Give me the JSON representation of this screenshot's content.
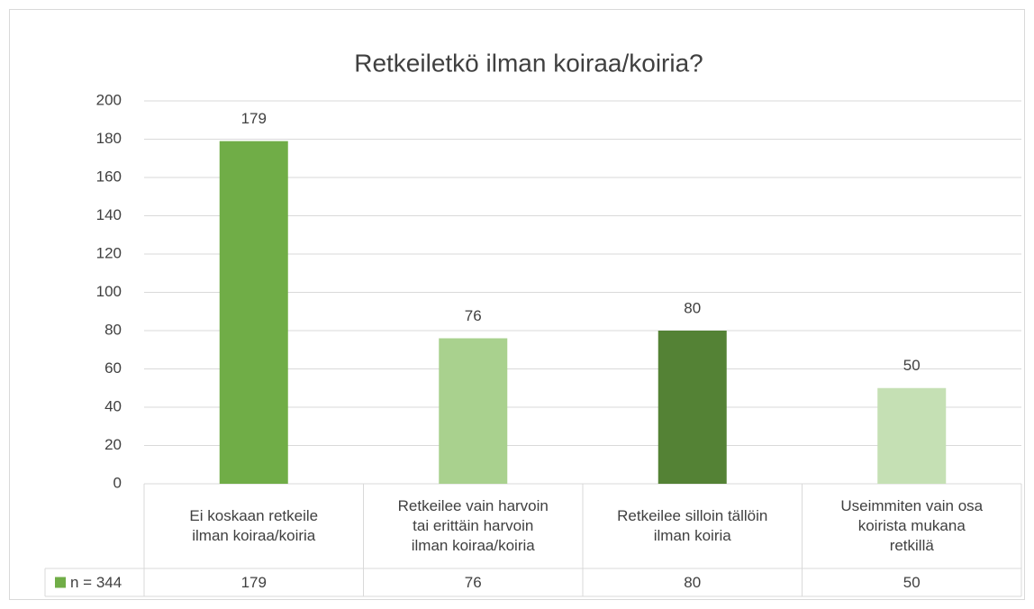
{
  "chart_data": {
    "type": "bar",
    "title": "Retkeiletkö ilman koiraa/koiria?",
    "categories": [
      "Ei koskaan retkeile\nilman koiraa/koiria",
      "Retkeilee vain harvoin\ntai erittäin harvoin\nilman koiraa/koiria",
      "Retkeilee silloin tällöin\nilman koiria",
      "Useimmiten vain osa\nkoirista mukana\nretkillä"
    ],
    "series": [
      {
        "name": "n = 344",
        "color": "#70ad47",
        "values": [
          179,
          76,
          80,
          50
        ]
      }
    ],
    "colors": [
      "#70ad47",
      "#a9d18e",
      "#548235",
      "#c5e0b4"
    ],
    "ylim": [
      0,
      200
    ],
    "yticks": [
      0,
      20,
      40,
      60,
      80,
      100,
      120,
      140,
      160,
      180,
      200
    ],
    "grid": true
  }
}
